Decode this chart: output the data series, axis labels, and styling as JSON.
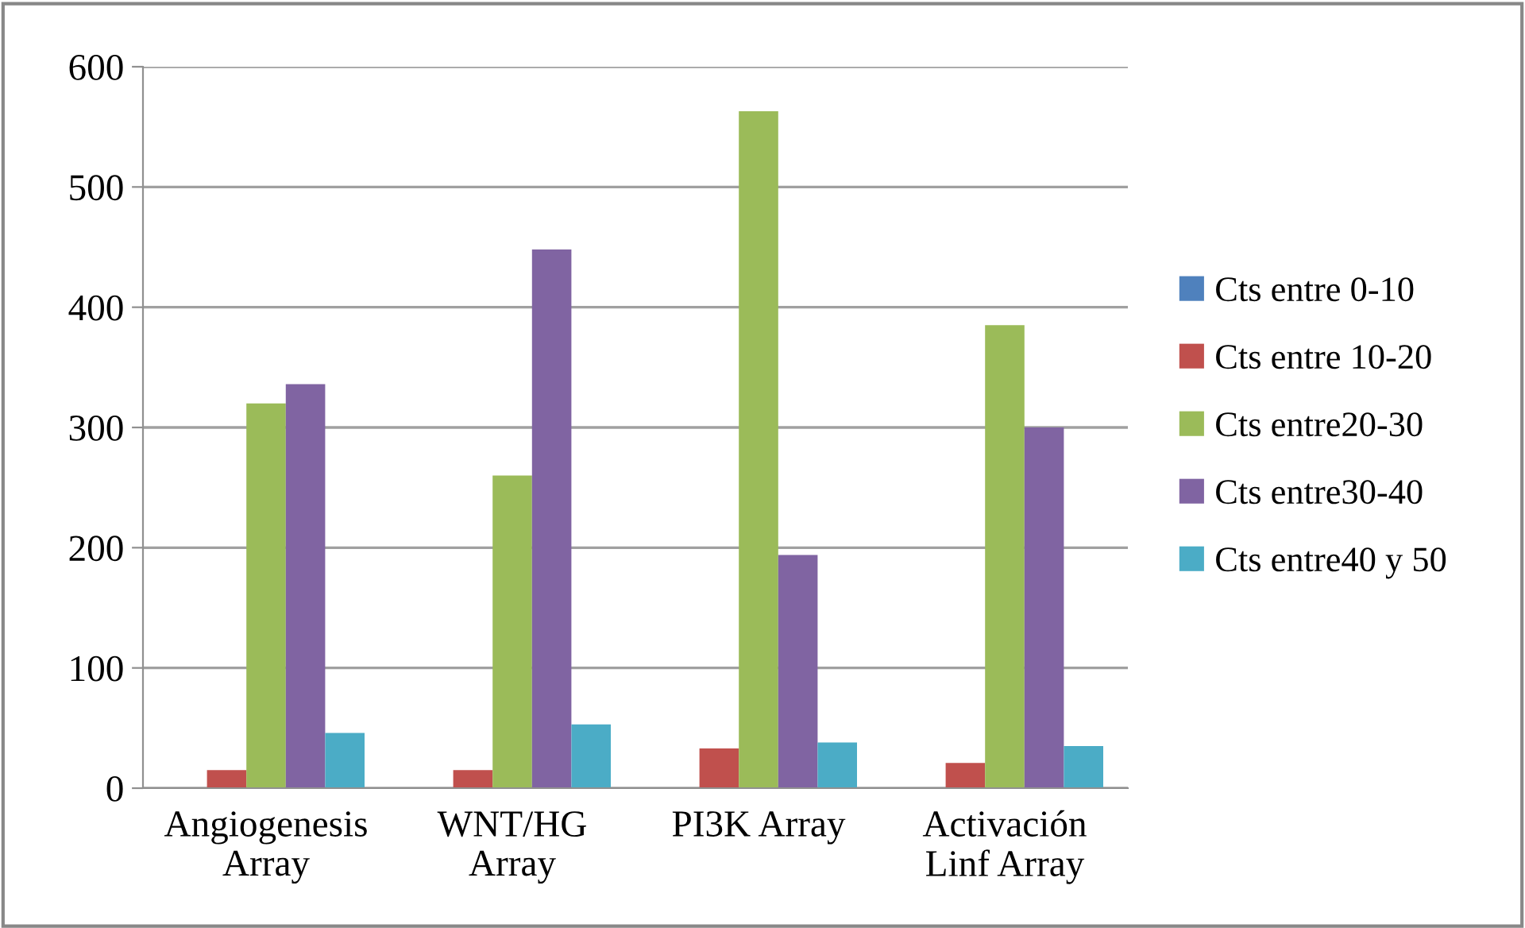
{
  "chart_data": {
    "type": "bar",
    "categories": [
      "Angiogenesis\nArray",
      "WNT/HG\nArray",
      "PI3K Array",
      "Activación\nLinf Array"
    ],
    "series": [
      {
        "name": "Cts entre 0-10",
        "color": "#4f81bd",
        "values": [
          0,
          0,
          0,
          0
        ]
      },
      {
        "name": "Cts entre 10-20",
        "color": "#c0504d",
        "values": [
          15,
          15,
          33,
          21
        ]
      },
      {
        "name": "Cts entre20-30",
        "color": "#9bbb59",
        "values": [
          320,
          260,
          563,
          385
        ]
      },
      {
        "name": "Cts entre30-40",
        "color": "#8064a2",
        "values": [
          336,
          448,
          194,
          300
        ]
      },
      {
        "name": "Cts entre40 y 50",
        "color": "#4bacc6",
        "values": [
          46,
          53,
          38,
          35
        ]
      }
    ],
    "ylim": [
      0,
      600
    ],
    "yticks": [
      0,
      100,
      200,
      300,
      400,
      500,
      600
    ],
    "grid": "y",
    "legend": "right"
  }
}
